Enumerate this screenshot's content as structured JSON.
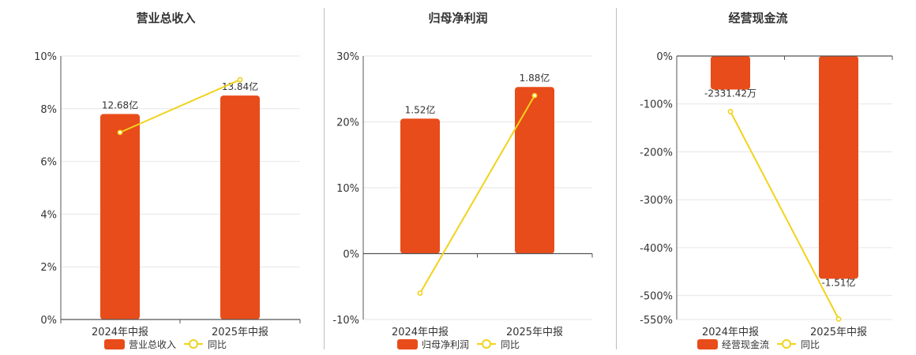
{
  "colors": {
    "bar": "#e84c1a",
    "line": "#f2d21b",
    "grid": "#e6e6e6",
    "axis": "#555555"
  },
  "chart_data": [
    {
      "type": "bar",
      "title": "营业总收入",
      "categories": [
        "2024年中报",
        "2025年中报"
      ],
      "series": [
        {
          "name": "营业总收入",
          "type": "bar",
          "bar_labels": [
            "12.68亿",
            "13.84亿"
          ]
        },
        {
          "name": "同比",
          "type": "line",
          "values": [
            7.1,
            9.1
          ]
        }
      ],
      "y_ticks": [
        "10%",
        "8%",
        "6%",
        "4%",
        "2%",
        "0%"
      ],
      "ylim": [
        0,
        10
      ],
      "bar_heights_in_axis_units": [
        7.8,
        8.5
      ],
      "legend_position": "bottom"
    },
    {
      "type": "bar",
      "title": "归母净利润",
      "categories": [
        "2024年中报",
        "2025年中报"
      ],
      "series": [
        {
          "name": "归母净利润",
          "type": "bar",
          "bar_labels": [
            "1.52亿",
            "1.88亿"
          ]
        },
        {
          "name": "同比",
          "type": "line",
          "values": [
            -6,
            24
          ]
        }
      ],
      "y_ticks": [
        "30%",
        "20%",
        "10%",
        "0%",
        "-10%"
      ],
      "ylim": [
        -10,
        30
      ],
      "bar_heights_in_axis_units": [
        20.5,
        25.3
      ],
      "legend_position": "bottom"
    },
    {
      "type": "bar",
      "title": "经营现金流",
      "categories": [
        "2024年中报",
        "2025年中报"
      ],
      "series": [
        {
          "name": "经营现金流",
          "type": "bar",
          "bar_labels": [
            "-2331.42万",
            "-1.51亿"
          ]
        },
        {
          "name": "同比",
          "type": "line",
          "values": [
            -116,
            -549
          ]
        }
      ],
      "y_ticks": [
        "0%",
        "-100%",
        "-200%",
        "-300%",
        "-400%",
        "-500%",
        "-550%"
      ],
      "ylim": [
        -550,
        0
      ],
      "bar_heights_in_axis_units": [
        -70,
        -465
      ],
      "legend_position": "bottom"
    }
  ]
}
